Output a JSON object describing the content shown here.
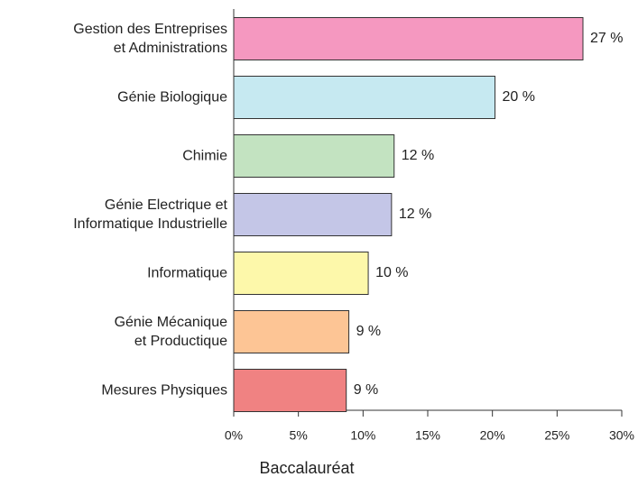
{
  "chart_data": {
    "type": "barh",
    "x_label": "Baccalauréat",
    "categories": [
      "Gestion des Entreprises\net Administrations",
      "Génie Biologique",
      "Chimie",
      "Génie Electrique et\nInformatique Industrielle",
      "Informatique",
      "Génie Mécanique\net Productique",
      "Mesures Physiques"
    ],
    "values": [
      27,
      20.2,
      12.4,
      12.2,
      10.4,
      8.9,
      8.7
    ],
    "value_labels": [
      "27 %",
      "20 %",
      "12 %",
      "12 %",
      "10 %",
      "9 %",
      "9 %"
    ],
    "colors": [
      "#f598c0",
      "#c6e9f1",
      "#c3e3c1",
      "#c4c6e7",
      "#fdf8aa",
      "#fdc595",
      "#f08282"
    ],
    "xlim": [
      0,
      30
    ],
    "xticks": [
      {
        "value": 0,
        "label": "0%"
      },
      {
        "value": 5,
        "label": "5%"
      },
      {
        "value": 10,
        "label": "10%"
      },
      {
        "value": 15,
        "label": "15%"
      },
      {
        "value": 20,
        "label": "20%"
      },
      {
        "value": 25,
        "label": "25%"
      },
      {
        "value": 30,
        "label": "30%"
      }
    ],
    "grid": false
  }
}
